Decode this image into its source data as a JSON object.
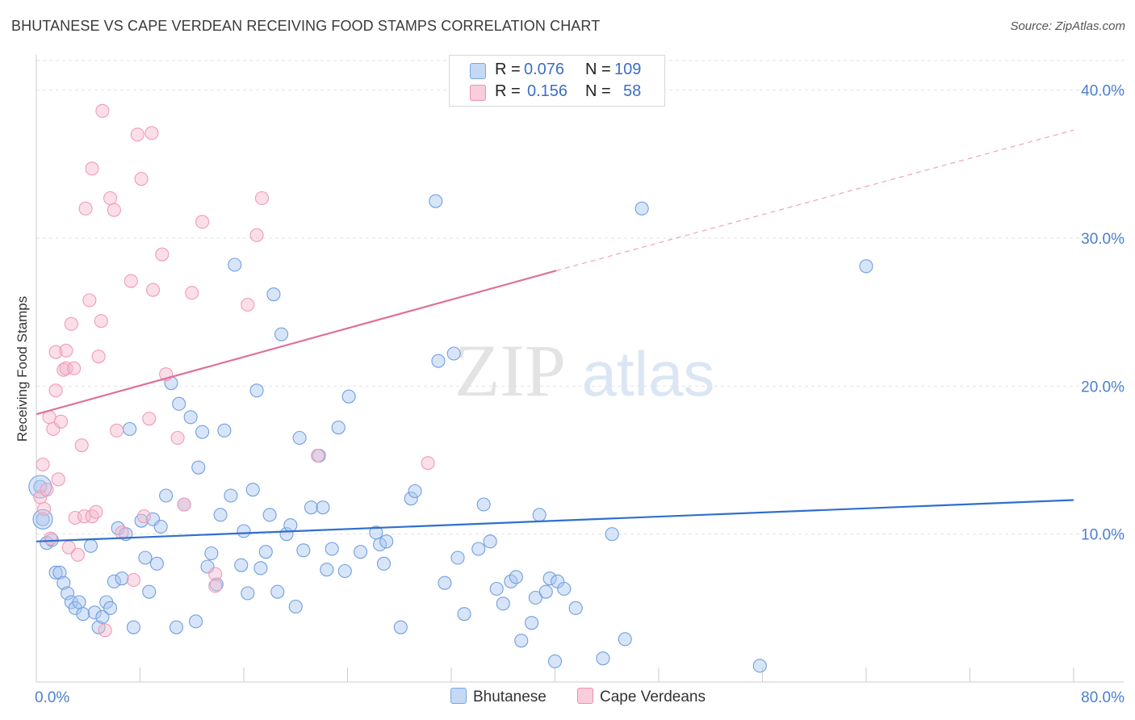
{
  "title": "BHUTANESE VS CAPE VERDEAN RECEIVING FOOD STAMPS CORRELATION CHART",
  "source": "Source: ZipAtlas.com",
  "watermark": {
    "zip": "ZIP",
    "atlas": "atlas"
  },
  "legend": {
    "rows": [
      {
        "r_label": "R =",
        "r_value": "0.076",
        "n_label": "N =",
        "n_value": "109",
        "color": "#a9c6ef"
      },
      {
        "r_label": "R =",
        "r_value": "0.156",
        "n_label": "N =",
        "n_value": "58",
        "color": "#f5b8cb"
      }
    ]
  },
  "bottom_legend": [
    {
      "label": "Bhutanese",
      "color": "#a9c6ef"
    },
    {
      "label": "Cape Verdeans",
      "color": "#f5b8cb"
    }
  ],
  "chart_data": {
    "type": "scatter",
    "title": "BHUTANESE VS CAPE VERDEAN RECEIVING FOOD STAMPS CORRELATION CHART",
    "xlabel": "",
    "ylabel": "Receiving Food Stamps",
    "xlim": [
      0,
      80
    ],
    "ylim": [
      0,
      42
    ],
    "x_tick_labels": [
      "0.0%",
      "80.0%"
    ],
    "y_ticks": [
      10,
      20,
      30,
      40
    ],
    "y_tick_labels": [
      "10.0%",
      "20.0%",
      "30.0%",
      "40.0%"
    ],
    "grid": "horizontal-dashed",
    "legend_placement": "top-center",
    "series": [
      {
        "name": "Bhutanese",
        "color": "#6fa0e0",
        "trend": {
          "x": [
            0,
            80
          ],
          "y": [
            9.5,
            12.3
          ],
          "color": "#2f6fcf"
        },
        "points": [
          [
            0.3,
            13.2
          ],
          [
            0.5,
            11.0
          ],
          [
            0.8,
            9.4
          ],
          [
            1.2,
            9.6
          ],
          [
            1.5,
            7.4
          ],
          [
            1.8,
            7.4
          ],
          [
            2.1,
            6.7
          ],
          [
            2.4,
            6.0
          ],
          [
            2.7,
            5.4
          ],
          [
            3.0,
            5.0
          ],
          [
            3.3,
            5.4
          ],
          [
            3.6,
            4.6
          ],
          [
            4.2,
            9.2
          ],
          [
            4.5,
            4.7
          ],
          [
            4.8,
            3.7
          ],
          [
            5.1,
            4.4
          ],
          [
            5.4,
            5.4
          ],
          [
            5.7,
            5.0
          ],
          [
            6.0,
            6.8
          ],
          [
            6.3,
            10.4
          ],
          [
            6.6,
            7.0
          ],
          [
            6.9,
            10.0
          ],
          [
            7.2,
            17.1
          ],
          [
            7.5,
            3.7
          ],
          [
            8.1,
            10.9
          ],
          [
            8.4,
            8.4
          ],
          [
            8.7,
            6.1
          ],
          [
            9.0,
            11.0
          ],
          [
            9.3,
            8.0
          ],
          [
            9.6,
            10.5
          ],
          [
            10.0,
            12.6
          ],
          [
            10.4,
            20.2
          ],
          [
            10.8,
            3.7
          ],
          [
            11.0,
            18.8
          ],
          [
            11.4,
            12.0
          ],
          [
            11.9,
            17.9
          ],
          [
            12.3,
            4.1
          ],
          [
            12.5,
            14.5
          ],
          [
            12.8,
            16.9
          ],
          [
            13.2,
            7.8
          ],
          [
            13.5,
            8.7
          ],
          [
            13.9,
            6.6
          ],
          [
            14.2,
            11.3
          ],
          [
            14.5,
            17.0
          ],
          [
            15.0,
            12.6
          ],
          [
            15.3,
            28.2
          ],
          [
            15.8,
            7.9
          ],
          [
            16.0,
            10.2
          ],
          [
            16.3,
            6.0
          ],
          [
            16.7,
            13.0
          ],
          [
            17.0,
            19.7
          ],
          [
            17.3,
            7.7
          ],
          [
            17.7,
            8.8
          ],
          [
            18.0,
            11.3
          ],
          [
            18.3,
            26.2
          ],
          [
            18.6,
            6.1
          ],
          [
            18.9,
            23.5
          ],
          [
            19.3,
            10.0
          ],
          [
            19.6,
            10.6
          ],
          [
            20.0,
            5.1
          ],
          [
            20.3,
            16.5
          ],
          [
            20.6,
            8.9
          ],
          [
            21.2,
            11.8
          ],
          [
            21.8,
            15.3
          ],
          [
            22.1,
            11.8
          ],
          [
            22.4,
            7.6
          ],
          [
            22.8,
            9.0
          ],
          [
            23.3,
            17.2
          ],
          [
            23.8,
            7.5
          ],
          [
            24.1,
            19.3
          ],
          [
            25.0,
            8.8
          ],
          [
            26.2,
            10.1
          ],
          [
            26.5,
            9.3
          ],
          [
            26.8,
            8.0
          ],
          [
            27.0,
            9.5
          ],
          [
            28.1,
            3.7
          ],
          [
            28.9,
            12.4
          ],
          [
            29.2,
            12.9
          ],
          [
            30.8,
            32.5
          ],
          [
            31.0,
            21.7
          ],
          [
            31.5,
            6.7
          ],
          [
            32.2,
            22.2
          ],
          [
            32.5,
            8.4
          ],
          [
            33.0,
            4.6
          ],
          [
            34.1,
            9.0
          ],
          [
            34.5,
            12.0
          ],
          [
            35.0,
            9.5
          ],
          [
            35.5,
            6.3
          ],
          [
            36.0,
            5.3
          ],
          [
            36.6,
            6.8
          ],
          [
            37.0,
            7.1
          ],
          [
            37.4,
            2.8
          ],
          [
            38.2,
            4.0
          ],
          [
            38.5,
            5.7
          ],
          [
            38.8,
            11.3
          ],
          [
            39.3,
            6.1
          ],
          [
            39.6,
            7.0
          ],
          [
            40.0,
            1.4
          ],
          [
            40.2,
            6.8
          ],
          [
            40.7,
            6.3
          ],
          [
            41.6,
            5.0
          ],
          [
            43.7,
            1.6
          ],
          [
            44.4,
            10.0
          ],
          [
            45.4,
            2.9
          ],
          [
            46.7,
            32.0
          ],
          [
            55.8,
            1.1
          ],
          [
            64.0,
            28.1
          ]
        ]
      },
      {
        "name": "Cape Verdeans",
        "color": "#f29ab8",
        "trend": {
          "x": [
            0,
            40.1
          ],
          "y": [
            18.1,
            27.8
          ],
          "color": "#e0709a",
          "extension": {
            "x": [
              40.1,
              80
            ],
            "y": [
              27.8,
              37.3
            ],
            "style": "dashed"
          }
        },
        "points": [
          [
            0.3,
            12.5
          ],
          [
            0.5,
            14.7
          ],
          [
            0.6,
            11.7
          ],
          [
            0.8,
            13.0
          ],
          [
            1.0,
            17.9
          ],
          [
            1.1,
            9.7
          ],
          [
            1.3,
            17.1
          ],
          [
            1.5,
            19.7
          ],
          [
            1.5,
            22.3
          ],
          [
            1.7,
            13.7
          ],
          [
            1.9,
            17.6
          ],
          [
            2.1,
            21.1
          ],
          [
            2.3,
            22.4
          ],
          [
            2.3,
            21.2
          ],
          [
            2.5,
            9.1
          ],
          [
            2.7,
            24.2
          ],
          [
            2.9,
            21.2
          ],
          [
            3.0,
            11.1
          ],
          [
            3.2,
            8.6
          ],
          [
            3.5,
            16.0
          ],
          [
            3.7,
            11.2
          ],
          [
            3.8,
            32.0
          ],
          [
            4.1,
            25.8
          ],
          [
            4.3,
            11.2
          ],
          [
            4.3,
            34.7
          ],
          [
            4.6,
            11.5
          ],
          [
            4.8,
            22.0
          ],
          [
            5.0,
            24.4
          ],
          [
            5.1,
            38.6
          ],
          [
            5.3,
            3.5
          ],
          [
            5.7,
            32.7
          ],
          [
            6.0,
            31.9
          ],
          [
            6.2,
            17.0
          ],
          [
            6.6,
            10.1
          ],
          [
            7.3,
            27.1
          ],
          [
            7.5,
            6.9
          ],
          [
            7.8,
            37.0
          ],
          [
            8.1,
            34.0
          ],
          [
            8.3,
            11.2
          ],
          [
            8.7,
            17.8
          ],
          [
            8.9,
            37.1
          ],
          [
            9.0,
            26.5
          ],
          [
            9.7,
            28.9
          ],
          [
            10.0,
            20.8
          ],
          [
            10.9,
            16.5
          ],
          [
            11.4,
            12.0
          ],
          [
            12.0,
            26.3
          ],
          [
            12.8,
            31.1
          ],
          [
            13.8,
            7.3
          ],
          [
            13.8,
            6.5
          ],
          [
            16.3,
            25.5
          ],
          [
            17.0,
            30.2
          ],
          [
            17.4,
            32.7
          ],
          [
            21.7,
            15.3
          ],
          [
            30.2,
            14.8
          ]
        ]
      }
    ]
  }
}
